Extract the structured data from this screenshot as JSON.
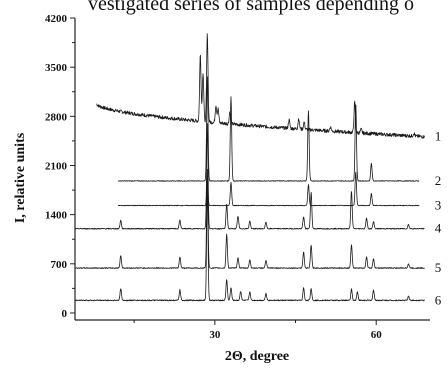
{
  "caption": "vestigated series of samples depending o",
  "chart_data": {
    "type": "line",
    "title": "",
    "xlabel": "2Θ, degree",
    "ylabel": "I, relative units",
    "xlim": [
      4,
      70
    ],
    "ylim": [
      -100,
      4200
    ],
    "x_ticks": [
      30,
      60
    ],
    "y_ticks": [
      0,
      700,
      1400,
      2100,
      2800,
      3500,
      4200
    ],
    "grid": false,
    "legend": "none",
    "series": [
      {
        "label": "1",
        "x_start": 8,
        "x_end": 69,
        "baseline_start": 2980,
        "baseline_end": 2510,
        "noise": 25,
        "peaks": [
          [
            27.3,
            950
          ],
          [
            27.8,
            700
          ],
          [
            28.6,
            1250
          ],
          [
            30.2,
            250
          ],
          [
            30.6,
            200
          ],
          [
            32.8,
            170
          ],
          [
            43.8,
            120
          ],
          [
            45.6,
            150
          ],
          [
            46.6,
            100
          ],
          [
            51.5,
            60
          ],
          [
            56,
            430
          ],
          [
            57.2,
            50
          ],
          [
            67,
            40
          ]
        ]
      },
      {
        "label": "2",
        "x_start": 12,
        "x_end": 68,
        "baseline": 1880,
        "noise": 5,
        "peaks": [
          [
            28.6,
            1500
          ],
          [
            33,
            1200
          ],
          [
            47.4,
            1000
          ],
          [
            56.2,
            1100
          ],
          [
            59.1,
            250
          ],
          [
            69.1,
            100
          ]
        ]
      },
      {
        "label": "3",
        "x_start": 12,
        "x_end": 68,
        "baseline": 1530,
        "noise": 5,
        "peaks": [
          [
            28.6,
            300
          ],
          [
            33,
            330
          ],
          [
            47.4,
            300
          ],
          [
            56.2,
            480
          ],
          [
            59.1,
            170
          ]
        ]
      },
      {
        "label": "4",
        "x_start": 4,
        "x_end": 69,
        "baseline": 1200,
        "noise": 7,
        "peaks": [
          [
            12.5,
            120
          ],
          [
            23.5,
            120
          ],
          [
            28.6,
            1500
          ],
          [
            32.2,
            350
          ],
          [
            34.3,
            180
          ],
          [
            36.5,
            110
          ],
          [
            39.5,
            90
          ],
          [
            46.5,
            170
          ],
          [
            47.9,
            520
          ],
          [
            55.4,
            540
          ],
          [
            58.2,
            150
          ],
          [
            59.5,
            100
          ],
          [
            66,
            60
          ]
        ]
      },
      {
        "label": "5",
        "x_start": 4,
        "x_end": 69,
        "baseline": 640,
        "noise": 7,
        "peaks": [
          [
            12.5,
            180
          ],
          [
            23.5,
            160
          ],
          [
            28.6,
            1400
          ],
          [
            32.2,
            480
          ],
          [
            34.3,
            150
          ],
          [
            36.5,
            120
          ],
          [
            39.5,
            110
          ],
          [
            46.5,
            230
          ],
          [
            47.9,
            330
          ],
          [
            55.4,
            330
          ],
          [
            58.2,
            160
          ],
          [
            59.5,
            130
          ],
          [
            66,
            60
          ]
        ]
      },
      {
        "label": "6",
        "x_start": 4,
        "x_end": 69,
        "baseline": 180,
        "noise": 8,
        "peaks": [
          [
            12.5,
            170
          ],
          [
            23.5,
            150
          ],
          [
            28.6,
            1600
          ],
          [
            32.2,
            300
          ],
          [
            33,
            180
          ],
          [
            34.8,
            130
          ],
          [
            36.5,
            120
          ],
          [
            39.5,
            100
          ],
          [
            46.5,
            180
          ],
          [
            47.9,
            170
          ],
          [
            55.4,
            160
          ],
          [
            56.5,
            120
          ],
          [
            59.5,
            150
          ],
          [
            66,
            60
          ]
        ]
      }
    ]
  }
}
